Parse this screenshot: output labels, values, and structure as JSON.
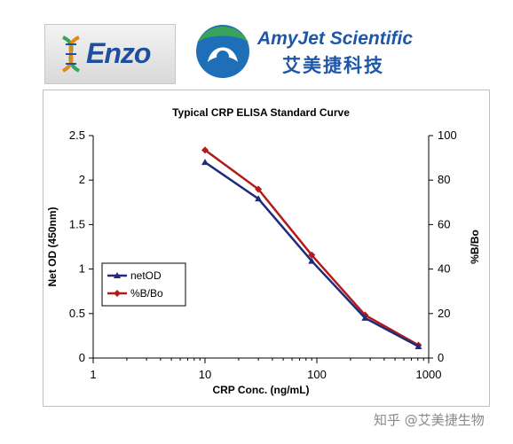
{
  "logos": {
    "enzo": {
      "text": "Enzo"
    },
    "amyjet": {
      "name": "AmyJet Scientific",
      "name_cn": "艾美捷科技"
    }
  },
  "watermark": "知乎 @艾美捷生物",
  "colors": {
    "netOD": "#1f2b7a",
    "bbo": "#b31b1b",
    "brand_blue": "#1f57a8",
    "brand_green": "#3aa35a"
  },
  "chart_data": {
    "type": "line",
    "title": "Typical CRP ELISA Standard Curve",
    "xlabel": "CRP Conc. (ng/mL)",
    "ylabel": "Net  OD (450nm)",
    "y2label": "%B/Bo",
    "x_scale": "log",
    "xlim": [
      1,
      1000
    ],
    "ylim": [
      0,
      2.5
    ],
    "y2lim": [
      0,
      100
    ],
    "x_ticks": [
      "1",
      "10",
      "100",
      "1000"
    ],
    "y_ticks": [
      "0",
      "0.5",
      "1",
      "1.5",
      "2",
      "2.5"
    ],
    "y2_ticks": [
      "0",
      "20",
      "40",
      "60",
      "80",
      "100"
    ],
    "grid": false,
    "legend_position": "middle-left",
    "series": [
      {
        "name": "netOD",
        "axis": "left",
        "x": [
          10,
          30,
          90,
          270,
          810
        ],
        "y": [
          2.2,
          1.79,
          1.09,
          0.45,
          0.13
        ]
      },
      {
        "name": "%B/Bo",
        "axis": "right",
        "x": [
          10,
          30,
          90,
          270,
          810
        ],
        "y": [
          93.5,
          75.9,
          46.3,
          19.3,
          5.8
        ]
      }
    ]
  }
}
